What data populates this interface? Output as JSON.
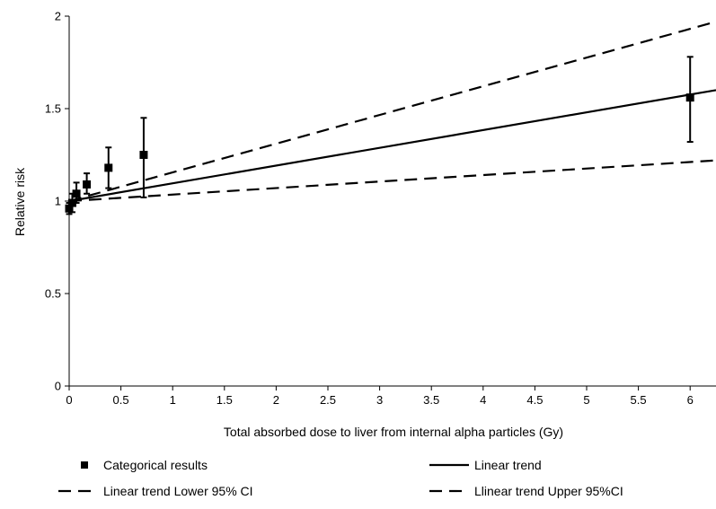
{
  "chart_data": {
    "type": "scatter",
    "title": "",
    "xlabel": "Total absorbed dose to liver from internal alpha particles (Gy)",
    "ylabel": "Relative risk",
    "xlim": [
      0,
      6.25
    ],
    "ylim": [
      0,
      2
    ],
    "x_ticks": [
      "0",
      "0.5",
      "1",
      "1.5",
      "2",
      "2.5",
      "3",
      "3.5",
      "4",
      "4.5",
      "5",
      "5.5",
      "6"
    ],
    "y_ticks": [
      "0",
      "0.5",
      "1",
      "1.5",
      "2"
    ],
    "grid": false,
    "legend_position": "bottom",
    "series": [
      {
        "name": "Categorical results",
        "kind": "points_with_error_bars",
        "points": [
          {
            "x": 0.0,
            "y": 0.96,
            "lo": 0.93,
            "hi": 0.99
          },
          {
            "x": 0.03,
            "y": 0.99,
            "lo": 0.94,
            "hi": 1.04
          },
          {
            "x": 0.07,
            "y": 1.04,
            "lo": 0.99,
            "hi": 1.1
          },
          {
            "x": 0.17,
            "y": 1.09,
            "lo": 1.04,
            "hi": 1.15
          },
          {
            "x": 0.38,
            "y": 1.18,
            "lo": 1.07,
            "hi": 1.29
          },
          {
            "x": 0.72,
            "y": 1.25,
            "lo": 1.02,
            "hi": 1.45
          },
          {
            "x": 6.0,
            "y": 1.56,
            "lo": 1.32,
            "hi": 1.78
          }
        ]
      },
      {
        "name": "Linear trend",
        "kind": "line",
        "style": "solid",
        "x": [
          0,
          6.25
        ],
        "y": [
          1.0,
          1.6
        ]
      },
      {
        "name": "Linear trend Lower 95% CI",
        "kind": "line",
        "style": "dashed",
        "x": [
          0,
          6.25
        ],
        "y": [
          1.0,
          1.22
        ]
      },
      {
        "name": "Llinear trend Upper 95%CI",
        "kind": "line",
        "style": "dashed",
        "x": [
          0,
          6.25
        ],
        "y": [
          1.0,
          1.97
        ]
      }
    ]
  }
}
